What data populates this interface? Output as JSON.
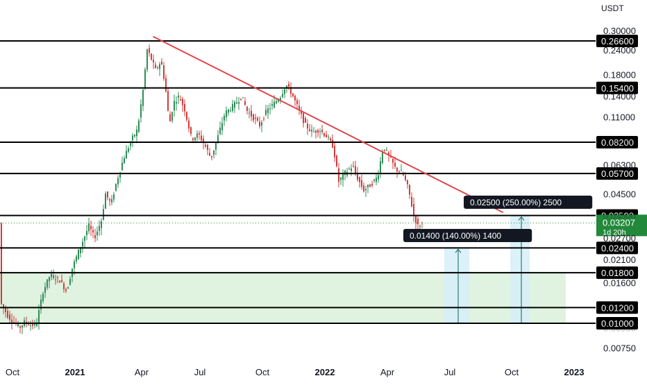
{
  "chart_data": {
    "type": "candlestick",
    "currency": "USDT",
    "scale": "log",
    "interval_label": "1d 20h",
    "y_ticks": [
      "0.30000",
      "0.24000",
      "0.18000",
      "0.14000",
      "0.11000",
      "0.08200",
      "0.06300",
      "0.04500",
      "0.03500",
      "0.02700",
      "0.02100",
      "0.01600",
      "0.01200",
      "0.00950",
      "0.00750"
    ],
    "x_ticks": [
      {
        "label": "Oct",
        "bold": false
      },
      {
        "label": "2021",
        "bold": true
      },
      {
        "label": "Apr",
        "bold": false
      },
      {
        "label": "Jul",
        "bold": false
      },
      {
        "label": "Oct",
        "bold": false
      },
      {
        "label": "2022",
        "bold": true
      },
      {
        "label": "Apr",
        "bold": false
      },
      {
        "label": "Jul",
        "bold": false
      },
      {
        "label": "Oct",
        "bold": false
      },
      {
        "label": "2023",
        "bold": true
      }
    ],
    "levels": [
      {
        "value": 0.266,
        "label": "0.26600"
      },
      {
        "value": 0.154,
        "label": "0.15400"
      },
      {
        "value": 0.082,
        "label": "0.08200"
      },
      {
        "value": 0.057,
        "label": "0.05700"
      },
      {
        "value": 0.035,
        "label": "0.03500"
      },
      {
        "value": 0.024,
        "label": "0.02400"
      },
      {
        "value": 0.018,
        "label": "0.01800"
      },
      {
        "value": 0.012,
        "label": "0.01200"
      },
      {
        "value": 0.01,
        "label": "0.01000"
      }
    ],
    "current_price": {
      "value": 0.03207,
      "label": "0.03207",
      "sub": "1d 20h"
    },
    "demand_zone": {
      "low": 0.01,
      "high": 0.018
    },
    "trendline": {
      "from": {
        "x": "2021-04-25",
        "y": 0.28
      },
      "to": {
        "x": "2022-09-20",
        "y": 0.0362
      }
    },
    "projections": [
      {
        "label": "0.01400 (140.00%) 1400",
        "from": 0.01,
        "to": 0.024
      },
      {
        "label": "0.02500 (250.00%) 2500",
        "from": 0.01,
        "to": 0.035
      }
    ],
    "colors": {
      "up": "#2e8b57",
      "down": "#d23a3a",
      "trend": "#e0474c",
      "zone": "#d8efd8",
      "projection": "#d6eef8",
      "price_box": "#22883a"
    }
  }
}
